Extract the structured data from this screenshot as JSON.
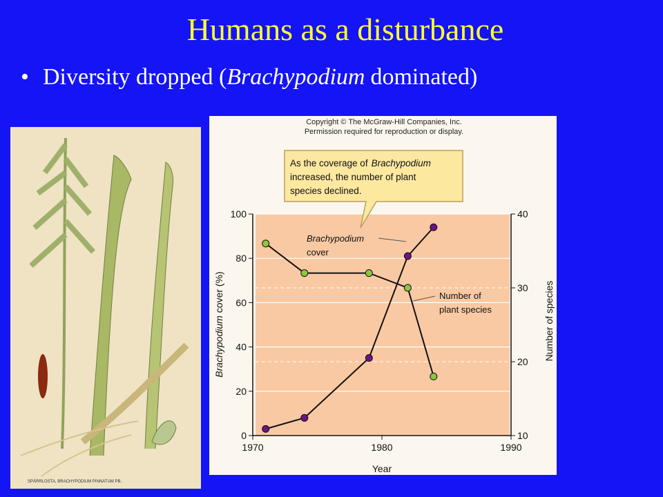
{
  "slide": {
    "title": "Humans as a disturbance",
    "bullet": [
      "Diversity dropped (",
      "Brachypodium",
      "dominated)"
    ],
    "plate_caption": "SPÄRRLOSTA, BRACHYPODIUM PINNATUM PB."
  },
  "chart_data": {
    "type": "line",
    "copyright": [
      "Copyright © The McGraw-Hill Companies, Inc.",
      "Permission required for reproduction or display."
    ],
    "callout": [
      "As the coverage of",
      "Brachypodium",
      "increased, the number of plant",
      "species declined."
    ],
    "annotations": [
      [
        "Brachypodium",
        "cover"
      ],
      [
        "Number of",
        "plant species"
      ]
    ],
    "x_label": "Year",
    "y_label": [
      "Brachypodium",
      "cover (%)"
    ],
    "y2_label": "Number of species",
    "x": [
      1971,
      1974,
      1979,
      1982,
      1984
    ],
    "series": [
      {
        "color": "#6b1580",
        "values": [
          3,
          8,
          35,
          81,
          94
        ]
      },
      {
        "color": "#8dc63f",
        "axis": "y2",
        "values": [
          36,
          32,
          32,
          30,
          18
        ]
      }
    ],
    "xlim": [
      1970,
      1990
    ],
    "xticks": [
      1970,
      1980,
      1990
    ],
    "ylim": [
      0,
      100
    ],
    "yticks": [
      0,
      20,
      40,
      60,
      80,
      100
    ],
    "y2lim": [
      10,
      40
    ],
    "y2ticks": [
      10,
      20,
      30,
      40
    ],
    "grid": true
  }
}
